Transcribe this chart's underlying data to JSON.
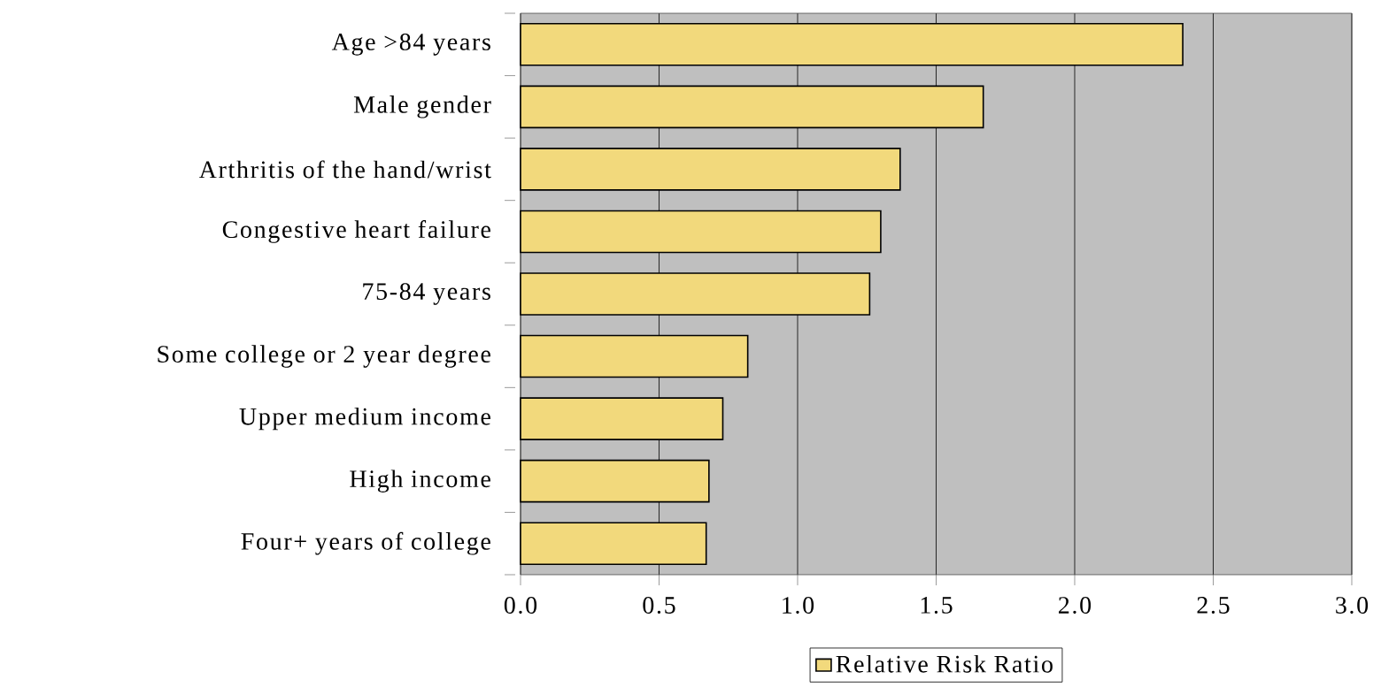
{
  "chart_data": {
    "type": "bar",
    "orientation": "horizontal",
    "categories": [
      "Age >84 years",
      "Male gender",
      "Arthritis of the hand/wrist",
      "Congestive heart failure",
      "75-84 years",
      "Some college or 2 year degree",
      "Upper medium income",
      "High income",
      "Four+ years of college"
    ],
    "series": [
      {
        "name": "Relative Risk Ratio",
        "color": "#f2d97c",
        "values": [
          2.39,
          1.67,
          1.37,
          1.3,
          1.26,
          0.82,
          0.73,
          0.68,
          0.67
        ]
      }
    ],
    "xlim": [
      0,
      3
    ],
    "xticks": [
      {
        "value": 0,
        "label": "0.0"
      },
      {
        "value": 0.5,
        "label": "0.5"
      },
      {
        "value": 1,
        "label": "1.0"
      },
      {
        "value": 1.5,
        "label": "1.5"
      },
      {
        "value": 2,
        "label": "2.0"
      },
      {
        "value": 2.5,
        "label": "2.5"
      },
      {
        "value": 3,
        "label": "3.0"
      }
    ],
    "grid": "x",
    "legend": "bottom"
  }
}
